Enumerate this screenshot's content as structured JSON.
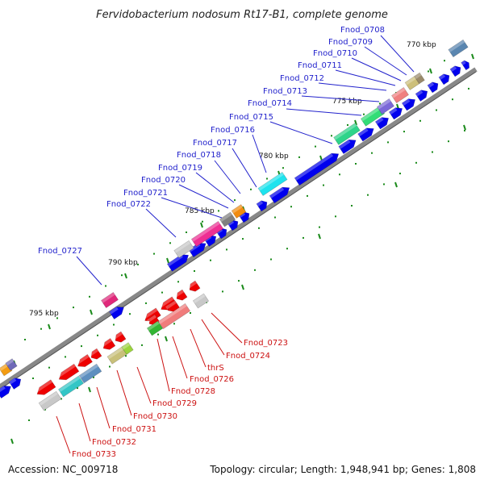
{
  "title": "Fervidobacterium nodosum Rt17-B1, complete genome",
  "footer": {
    "accession": "Accession: NC_009718",
    "topology": "Topology: circular; Length: 1,948,941 bp; Genes: 1,808"
  },
  "ticks": [
    "770 kbp",
    "775 kbp",
    "780 kbp",
    "785 kbp",
    "790 kbp",
    "795 kbp"
  ],
  "forward_labels": [
    "Fnod_0708",
    "Fnod_0709",
    "Fnod_0710",
    "Fnod_0711",
    "Fnod_0712",
    "Fnod_0713",
    "Fnod_0714",
    "Fnod_0715",
    "Fnod_0716",
    "Fnod_0717",
    "Fnod_0718",
    "Fnod_0719",
    "Fnod_0720",
    "Fnod_0721",
    "Fnod_0722",
    "Fnod_0727"
  ],
  "reverse_labels": [
    "Fnod_0723",
    "Fnod_0724",
    "thrS",
    "Fnod_0726",
    "Fnod_0728",
    "Fnod_0729",
    "Fnod_0730",
    "Fnod_0731",
    "Fnod_0732",
    "Fnod_0733"
  ],
  "colors": {
    "forward": "#0000ee",
    "reverse": "#ee0000",
    "backbone": "#888888",
    "tick": "#1a8a1a",
    "forward_label": "#2222cc",
    "reverse_label": "#cc1111"
  }
}
